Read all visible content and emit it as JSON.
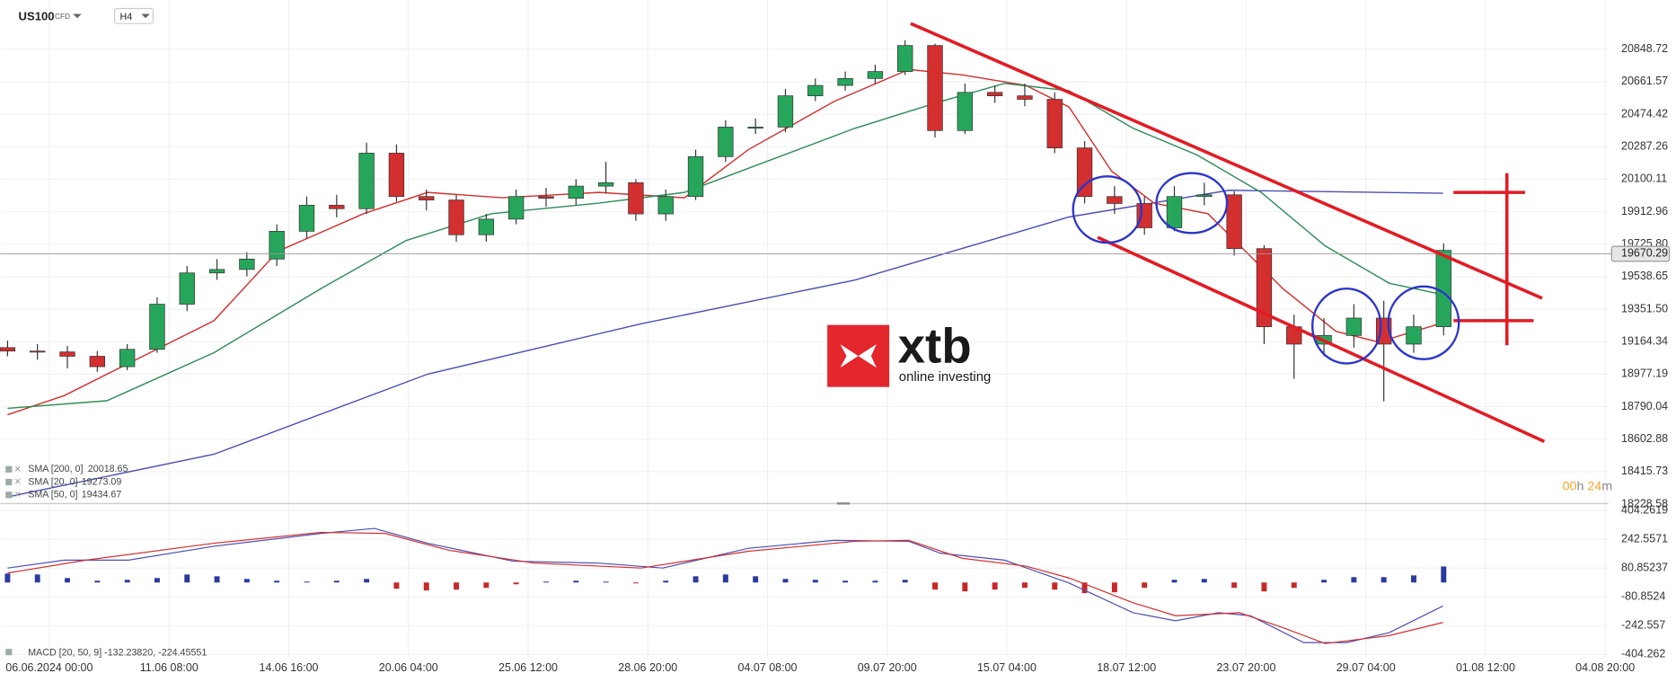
{
  "toolbar": {
    "symbol": "US100",
    "instrument_type": "CFD",
    "timeframe": "H4"
  },
  "watermark": {
    "brand": "xtb",
    "tagline": "online investing"
  },
  "countdown": {
    "hours": "00",
    "hours_unit": "h",
    "minutes": "24",
    "minutes_unit": "m"
  },
  "chart_data": {
    "type": "candlestick",
    "up_color": "#26a65b",
    "down_color": "#d32f2f",
    "grid": true,
    "x": [
      -7,
      -2,
      3,
      8,
      13,
      18,
      23,
      28,
      33,
      38,
      43,
      48,
      53,
      58,
      63,
      68,
      73,
      78,
      83,
      88,
      93,
      98,
      103,
      108,
      113,
      118,
      123,
      128,
      133,
      138,
      143,
      148,
      153,
      158,
      163,
      168,
      173,
      178,
      183,
      188,
      193,
      198,
      203,
      208,
      213,
      218,
      223,
      228,
      233
    ],
    "open": [
      19130,
      19110,
      19105,
      19080,
      19020,
      19120,
      19380,
      19560,
      19580,
      19640,
      19800,
      19950,
      19930,
      20250,
      20000,
      19980,
      19780,
      19870,
      20000,
      19990,
      20060,
      20080,
      19900,
      20000,
      20230,
      20400,
      20400,
      20580,
      20640,
      20680,
      20720,
      20870,
      20380,
      20600,
      20580,
      20560,
      20280,
      20000,
      19960,
      19820,
      20000,
      20010,
      19700,
      19250,
      19150,
      19200,
      19300,
      19150,
      19250
    ],
    "high": [
      19170,
      19150,
      19140,
      19110,
      19150,
      19420,
      19600,
      19640,
      19680,
      19840,
      20000,
      20010,
      20310,
      20300,
      20040,
      20010,
      19900,
      20040,
      20050,
      20100,
      20200,
      20100,
      20040,
      20270,
      20440,
      20450,
      20620,
      20680,
      20720,
      20760,
      20900,
      20880,
      20650,
      20640,
      20650,
      20600,
      20320,
      20060,
      20000,
      20060,
      20080,
      20030,
      19720,
      19320,
      19300,
      19380,
      19400,
      19320,
      19730
    ],
    "low": [
      19080,
      19060,
      19010,
      18990,
      19000,
      19100,
      19340,
      19520,
      19540,
      19600,
      19760,
      19880,
      19900,
      19970,
      19920,
      19740,
      19740,
      19840,
      19940,
      19950,
      20020,
      19860,
      19860,
      19980,
      20200,
      20360,
      20370,
      20550,
      20610,
      20650,
      20700,
      20340,
      20360,
      20540,
      20520,
      20250,
      19960,
      19900,
      19780,
      19800,
      19950,
      19660,
      19150,
      18950,
      19080,
      19130,
      18820,
      19100,
      19200
    ],
    "close": [
      19110,
      19105,
      19080,
      19020,
      19120,
      19380,
      19560,
      19580,
      19640,
      19800,
      19950,
      19930,
      20250,
      20000,
      19980,
      19780,
      19870,
      20000,
      19990,
      20060,
      20080,
      19900,
      20000,
      20230,
      20400,
      20400,
      20580,
      20640,
      20680,
      20720,
      20870,
      20380,
      20600,
      20580,
      20560,
      20280,
      20000,
      19960,
      19820,
      20000,
      20010,
      19700,
      19250,
      19150,
      19200,
      19300,
      19150,
      19250,
      19690
    ],
    "xlim": [
      -8,
      260.5
    ],
    "ylim": [
      18226,
      21132
    ],
    "xticks": [
      {
        "value": 0,
        "label": "06.06.2024 00:00"
      },
      {
        "value": 20,
        "label": "11.06 08:00"
      },
      {
        "value": 40,
        "label": "14.06 16:00"
      },
      {
        "value": 60,
        "label": "20.06 04:00"
      },
      {
        "value": 80,
        "label": "25.06 12:00"
      },
      {
        "value": 100,
        "label": "28.06 20:00"
      },
      {
        "value": 120,
        "label": "04.07 08:00"
      },
      {
        "value": 140,
        "label": "09.07 20:00"
      },
      {
        "value": 160,
        "label": "15.07 04:00"
      },
      {
        "value": 180,
        "label": "18.07 12:00"
      },
      {
        "value": 200,
        "label": "23.07 20:00"
      },
      {
        "value": 220,
        "label": "29.07 04:00"
      },
      {
        "value": 240,
        "label": "01.08 12:00"
      },
      {
        "value": 260,
        "label": "04.08 20:00"
      }
    ],
    "yticks": [
      20848.72,
      20661.57,
      20474.42,
      20287.26,
      20100.11,
      19912.96,
      {
        "value": 19725.8,
        "label": "19725.80"
      },
      19538.65,
      {
        "value": 19351.5,
        "label": "19351.50"
      },
      19164.34,
      18977.19,
      {
        "value": 18790.04,
        "label": "18790.04"
      },
      18602.88,
      18415.73,
      18228.58
    ],
    "current_price": 19670.29,
    "series": [
      {
        "name": "SMA [200, 0]",
        "color": "#4a4fb5",
        "x": [
          -7,
          27.5,
          63.2,
          98.9,
          134.6,
          170.4,
          197.1,
          232.9
        ],
        "values": [
          18270,
          18516,
          18977,
          19267,
          19519,
          19882,
          20036,
          20018.65
        ]
      },
      {
        "name": "SMA [20, 0]",
        "color": "#d32f2f",
        "x": [
          -7,
          2.5,
          13.2,
          27.5,
          38.2,
          52.5,
          63.2,
          75.7,
          91.8,
          106.1,
          116.8,
          131.1,
          143.6,
          152.5,
          163.2,
          170.4,
          177.5,
          184.6,
          193.6,
          206.1,
          215,
          222.1,
          232.9
        ],
        "values": [
          18743,
          18854,
          19039,
          19285,
          19685,
          19901,
          20024,
          19993,
          20024,
          19993,
          20270,
          20547,
          20732,
          20701,
          20640,
          20516,
          20147,
          19962,
          19901,
          19470,
          19224,
          19162,
          19273.09
        ]
      },
      {
        "name": "SMA [50, 0]",
        "color": "#2e8b57",
        "x": [
          -7,
          9.6,
          27.5,
          45.4,
          59.6,
          73.9,
          91.8,
          106.1,
          120.4,
          134.6,
          148.9,
          159.6,
          170.4,
          181.1,
          191.8,
          202.5,
          213.2,
          223.9,
          232.9
        ],
        "values": [
          18780,
          18824,
          19101,
          19470,
          19747,
          19901,
          19962,
          20024,
          20209,
          20393,
          20547,
          20652,
          20609,
          20393,
          20239,
          20024,
          19716,
          19501,
          19434.67
        ]
      }
    ],
    "macd": {
      "legend": "MACD [20, 50, 9] -132.23820, -224.45551",
      "ylim": [
        -421,
        438
      ],
      "yticks": [
        404.2619,
        242.5571,
        80.85237,
        -80.8524,
        -242.557,
        -404.262
      ],
      "positive_color": "#2b3a9e",
      "negative_color": "#c62828",
      "histogram": [
        50,
        45,
        25,
        10,
        15,
        25,
        45,
        35,
        20,
        10,
        5,
        10,
        20,
        -35,
        -45,
        -40,
        -30,
        -10,
        5,
        10,
        5,
        -5,
        10,
        35,
        45,
        35,
        20,
        15,
        10,
        10,
        15,
        -40,
        -50,
        -40,
        -30,
        -40,
        -60,
        -55,
        -30,
        15,
        20,
        -30,
        -50,
        -30,
        15,
        30,
        30,
        40,
        90
      ],
      "series": [
        {
          "color": "#4a4fb5",
          "x": [
            -7,
            2.5,
            13.2,
            27.5,
            45.4,
            54.3,
            63.2,
            77.5,
            91.8,
            102.5,
            116.8,
            131.1,
            143.6,
            148.9,
            159.6,
            170.4,
            181.1,
            188.2,
            195.4,
            200.7,
            209.6,
            216.8,
            223.9,
            232.9
          ],
          "values": [
            80.9,
            125.5,
            125.5,
            203.5,
            276,
            303.9,
            220.3,
            119.9,
            108.7,
            80.9,
            192.4,
            237,
            231.4,
            164.5,
            125.5,
            -2.8,
            -170.1,
            -214.7,
            -170.1,
            -186.8,
            -337.4,
            -337.4,
            -281.6,
            -132.2382
          ]
        },
        {
          "color": "#d32f2f",
          "x": [
            -7,
            6.1,
            27.5,
            45.4,
            56.1,
            66.8,
            81.1,
            98.9,
            116.8,
            134.6,
            143.6,
            152.5,
            163.2,
            170.4,
            181.1,
            188.2,
            198.9,
            206.1,
            213.2,
            223.9,
            232.9
          ],
          "values": [
            53,
            125.5,
            220.3,
            281.6,
            276,
            181.2,
            108.7,
            80.9,
            175.6,
            231.4,
            237,
            136.6,
            92,
            25.1,
            -114.3,
            -186.8,
            -170.1,
            -253.7,
            -342.9,
            -298.3,
            -224.45551
          ]
        }
      ]
    }
  }
}
